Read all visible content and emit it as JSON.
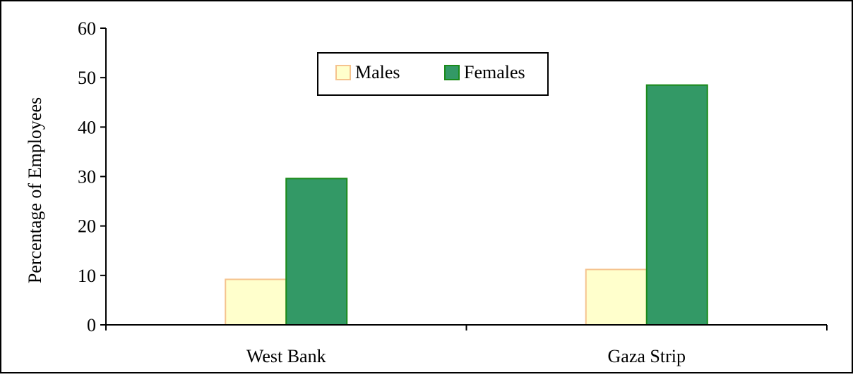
{
  "chart_data": {
    "type": "bar",
    "categories": [
      "West Bank",
      "Gaza Strip"
    ],
    "series": [
      {
        "name": "Males",
        "values": [
          9.2,
          11.2
        ],
        "fill": "#ffffcc",
        "stroke": "#f5c38e"
      },
      {
        "name": "Females",
        "values": [
          29.6,
          48.5
        ],
        "fill": "#339966",
        "stroke": "#1a8a1a"
      }
    ],
    "ylabel": "Percentage of Employees",
    "xlabel": "",
    "title": "",
    "ylim": [
      0,
      60
    ],
    "yticks": [
      0,
      10,
      20,
      30,
      40,
      50,
      60
    ],
    "grid": false,
    "legend_position": "top-center"
  }
}
